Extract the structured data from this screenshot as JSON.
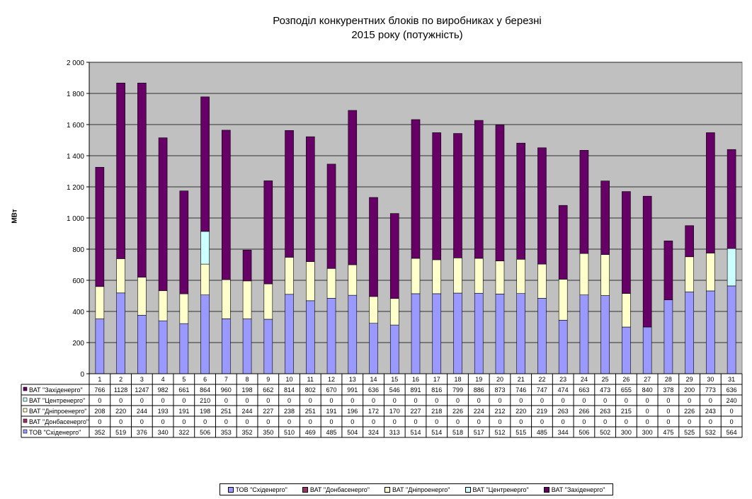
{
  "chart_data": {
    "type": "bar",
    "stacked": true,
    "title_line1": "Розподіл конкурентних  блоків по виробниках  у березні",
    "title_line2": "2015 року  (потужність)",
    "ylabel": "МВт",
    "xlabel": "",
    "ylim": [
      0,
      2000
    ],
    "y_ticks": [
      "0",
      "200",
      "400",
      "600",
      "800",
      "1 000",
      "1 200",
      "1 400",
      "1 600",
      "1 800",
      "2 000"
    ],
    "grid": true,
    "legend_position": "bottom",
    "categories": [
      "1",
      "2",
      "3",
      "4",
      "5",
      "6",
      "7",
      "8",
      "9",
      "10",
      "11",
      "12",
      "13",
      "14",
      "15",
      "16",
      "17",
      "18",
      "19",
      "20",
      "21",
      "22",
      "23",
      "24",
      "25",
      "26",
      "27",
      "28",
      "29",
      "30",
      "31"
    ],
    "series": [
      {
        "name": "ТОВ \"Східенерго\"",
        "color": "#9999ff",
        "values": [
          352,
          519,
          376,
          340,
          322,
          506,
          353,
          352,
          350,
          510,
          469,
          485,
          504,
          324,
          313,
          514,
          514,
          518,
          517,
          512,
          515,
          485,
          344,
          506,
          502,
          300,
          300,
          475,
          525,
          532,
          564
        ]
      },
      {
        "name": "ВАТ \"Донбасенерго\"",
        "color": "#993366",
        "values": [
          0,
          0,
          0,
          0,
          0,
          0,
          0,
          0,
          0,
          0,
          0,
          0,
          0,
          0,
          0,
          0,
          0,
          0,
          0,
          0,
          0,
          0,
          0,
          0,
          0,
          0,
          0,
          0,
          0,
          0,
          0
        ]
      },
      {
        "name": "ВАТ \"Дніпроенерго\"",
        "color": "#ffffcc",
        "values": [
          208,
          220,
          244,
          193,
          191,
          198,
          251,
          244,
          227,
          238,
          251,
          191,
          196,
          172,
          170,
          227,
          218,
          226,
          224,
          212,
          220,
          219,
          263,
          266,
          263,
          215,
          0,
          0,
          226,
          243,
          0
        ]
      },
      {
        "name": "ВАТ \"Центренерго\"",
        "color": "#ccffff",
        "values": [
          0,
          0,
          0,
          0,
          0,
          210,
          0,
          0,
          0,
          0,
          0,
          0,
          0,
          0,
          0,
          0,
          0,
          0,
          0,
          0,
          0,
          0,
          0,
          0,
          0,
          0,
          0,
          0,
          0,
          0,
          240
        ]
      },
      {
        "name": "ВАТ \"Західенерго\"",
        "color": "#660066",
        "values": [
          766,
          1128,
          1247,
          982,
          661,
          864,
          960,
          198,
          662,
          814,
          802,
          670,
          991,
          636,
          546,
          891,
          816,
          799,
          886,
          873,
          746,
          747,
          474,
          663,
          473,
          655,
          840,
          378,
          200,
          773,
          636
        ]
      }
    ],
    "table_row_order": [
      4,
      3,
      2,
      1,
      0
    ],
    "legend_order": [
      0,
      1,
      2,
      3,
      4
    ],
    "colors": {
      "plot_bg": "#c0c0c0",
      "grid": "#000000",
      "bar_border": "#000000"
    }
  }
}
